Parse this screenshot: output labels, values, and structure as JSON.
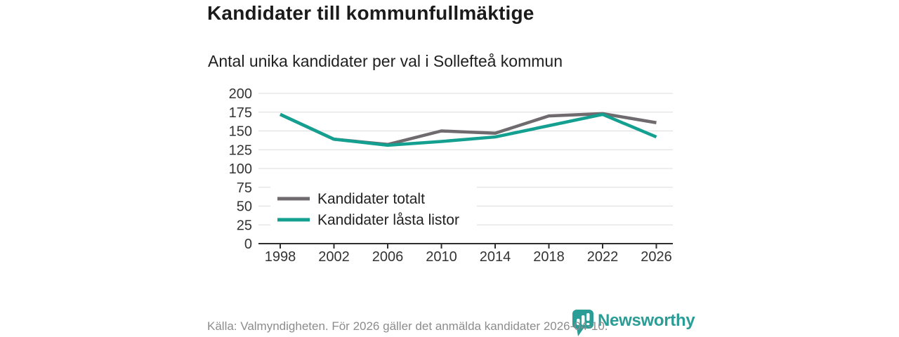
{
  "page": {
    "title": "Kandidater till kommunfullmäktige",
    "subtitle": "Antal unika kandidater per val i Sollefteå kommun",
    "source_note": "Källa: Valmyndigheten. För 2026 gäller det anmälda kandidater 2026-04-10.",
    "brand": {
      "name": "Newsworthy",
      "icon": "speech-bubble-bar-chart",
      "color": "#2a9d96"
    }
  },
  "chart_data": {
    "type": "line",
    "title": "Kandidater till kommunfullmäktige",
    "subtitle": "Antal unika kandidater per val i Sollefteå kommun",
    "categories": [
      "1998",
      "2002",
      "2006",
      "2010",
      "2014",
      "2018",
      "2022",
      "2026"
    ],
    "series": [
      {
        "name": "Kandidater totalt",
        "color": "#6e6a6e",
        "values": [
          172,
          139,
          132,
          150,
          147,
          170,
          173,
          161
        ]
      },
      {
        "name": "Kandidater låsta listor",
        "color": "#14a090",
        "values": [
          172,
          139,
          131,
          136,
          142,
          157,
          172,
          142
        ]
      }
    ],
    "xlabel": "",
    "ylabel": "",
    "ylim": [
      0,
      200
    ],
    "yticks": [
      0,
      25,
      50,
      75,
      100,
      125,
      150,
      175,
      200
    ],
    "grid": "horizontal",
    "grid_color": "#dcdcdc",
    "axis_color": "#2f2f2f",
    "tick_label_color": "#333333",
    "legend_position": "inside-bottom-left",
    "legend_text_color": "#222222"
  }
}
